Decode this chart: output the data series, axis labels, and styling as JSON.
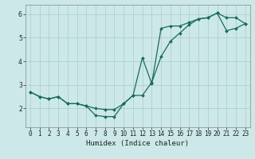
{
  "xlabel": "Humidex (Indice chaleur)",
  "bg_color": "#cce8e8",
  "grid_color": "#aacccc",
  "line_color": "#1a6b5a",
  "line1_x": [
    0,
    1,
    2,
    3,
    4,
    5,
    6,
    7,
    8,
    9,
    10,
    11,
    12,
    13,
    14,
    15,
    16,
    17,
    18,
    19,
    20,
    21,
    22,
    23
  ],
  "line1_y": [
    2.7,
    2.5,
    2.4,
    2.5,
    2.2,
    2.2,
    2.1,
    1.7,
    1.65,
    1.65,
    2.2,
    2.55,
    4.15,
    3.05,
    5.4,
    5.5,
    5.5,
    5.65,
    5.8,
    5.85,
    6.05,
    5.85,
    5.85,
    5.6
  ],
  "line2_x": [
    0,
    1,
    2,
    3,
    4,
    5,
    6,
    7,
    8,
    9,
    10,
    11,
    12,
    13,
    14,
    15,
    16,
    17,
    18,
    19,
    20,
    21,
    22,
    23
  ],
  "line2_y": [
    2.7,
    2.5,
    2.4,
    2.5,
    2.2,
    2.2,
    2.1,
    2.0,
    1.95,
    1.95,
    2.2,
    2.55,
    2.55,
    3.1,
    4.2,
    4.85,
    5.2,
    5.55,
    5.8,
    5.85,
    6.05,
    5.3,
    5.4,
    5.6
  ],
  "xlim": [
    -0.5,
    23.5
  ],
  "ylim": [
    1.2,
    6.4
  ],
  "yticks": [
    2,
    3,
    4,
    5,
    6
  ],
  "xticks": [
    0,
    1,
    2,
    3,
    4,
    5,
    6,
    7,
    8,
    9,
    10,
    11,
    12,
    13,
    14,
    15,
    16,
    17,
    18,
    19,
    20,
    21,
    22,
    23
  ],
  "xlabel_fontsize": 6.5,
  "tick_fontsize": 5.5,
  "linewidth": 0.9,
  "markersize": 2.0
}
